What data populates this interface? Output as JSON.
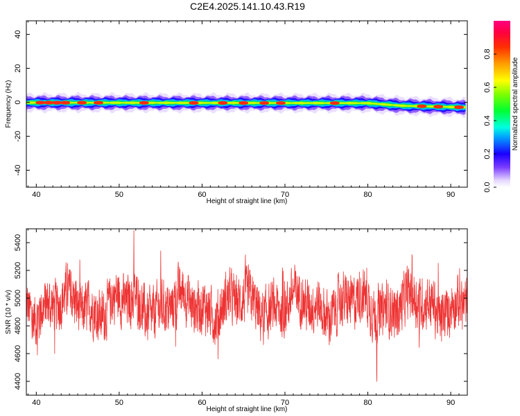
{
  "title": "C2E4.2025.141.10.43.R19",
  "colors": {
    "snr_line": "#ee3333",
    "axis": "#000000"
  },
  "chart_data": [
    {
      "type": "heatmap",
      "xlabel": "Height of straight line (km)",
      "ylabel": "Frequency (Hz)",
      "xlim": [
        38.8,
        92.0
      ],
      "ylim": [
        -50,
        48
      ],
      "xticks": [
        40,
        50,
        60,
        70,
        80,
        90
      ],
      "yticks": [
        -40,
        -20,
        0,
        20,
        40
      ],
      "band": {
        "center_hz": [
          {
            "x": 38.8,
            "y": -0.2
          },
          {
            "x": 80.0,
            "y": -0.5
          },
          {
            "x": 84.0,
            "y": -2.0
          },
          {
            "x": 92.0,
            "y": -3.0
          }
        ],
        "half_width_hz": 2.5
      },
      "peak_heights_km": [
        40.5,
        41.5,
        42.5,
        43.5,
        45.5,
        47.5,
        53.0,
        59.0,
        62.5,
        65.0,
        67.5,
        69.5,
        76.0,
        86.5,
        88.5,
        91.0
      ]
    },
    {
      "type": "colorbar",
      "label": "Normalized spectral amplitude",
      "range": [
        0.0,
        1.0
      ],
      "ticks": [
        0.0,
        0.2,
        0.4,
        0.6,
        0.8
      ]
    },
    {
      "type": "line",
      "xlabel": "Height of straight line (km)",
      "ylabel": "SNR (10 * v/v)",
      "xlim": [
        38.8,
        92.0
      ],
      "ylim": [
        4300,
        5500
      ],
      "xticks": [
        40,
        50,
        60,
        70,
        80,
        90
      ],
      "yticks": [
        4400,
        4600,
        4800,
        5000,
        5200,
        5400
      ],
      "series": [
        {
          "values_summary": {
            "baseline_center": 4950,
            "typical_swing": 200,
            "approx_min": 4300,
            "approx_max": 5490
          }
        }
      ]
    }
  ]
}
